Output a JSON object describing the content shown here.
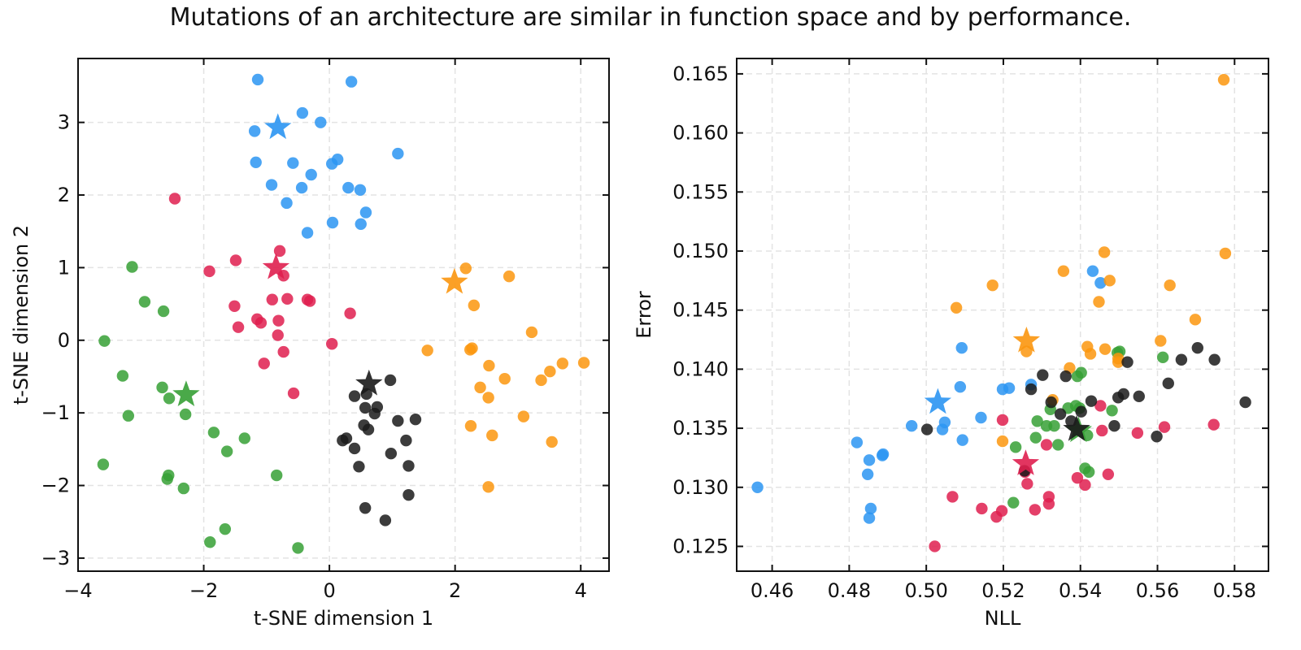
{
  "figure": {
    "title": "Mutations of an architecture are similar in function space and by performance."
  },
  "colors": {
    "blue": "#2b95f2",
    "red": "#df1f4f",
    "green": "#36a035",
    "orange": "#fb960e",
    "black": "#1a1a1a",
    "grid": "#e3e3e3",
    "axis": "#111111"
  },
  "chart_data": [
    {
      "type": "scatter",
      "xlabel": "t-SNE dimension 1",
      "ylabel": "t-SNE dimension 2",
      "xlim": [
        -4,
        4.45
      ],
      "ylim": [
        -3.18,
        3.88
      ],
      "xticks": [
        -4,
        -2,
        0,
        2,
        4
      ],
      "yticks": [
        -3,
        -2,
        -1,
        0,
        1,
        2,
        3
      ],
      "xtick_labels": [
        "−4",
        "−2",
        "0",
        "2",
        "4"
      ],
      "ytick_labels": [
        "−3",
        "−2",
        "−1",
        "0",
        "1",
        "2",
        "3"
      ],
      "grid": true,
      "series": [
        {
          "color": "blue",
          "star": [
            -0.82,
            2.93
          ],
          "points": [
            [
              -1.14,
              3.59
            ],
            [
              0.35,
              3.56
            ],
            [
              -0.43,
              3.13
            ],
            [
              -0.14,
              3.0
            ],
            [
              -1.19,
              2.88
            ],
            [
              1.09,
              2.57
            ],
            [
              0.13,
              2.49
            ],
            [
              -1.17,
              2.45
            ],
            [
              -0.58,
              2.44
            ],
            [
              0.04,
              2.43
            ],
            [
              -0.29,
              2.28
            ],
            [
              -0.92,
              2.14
            ],
            [
              -0.44,
              2.1
            ],
            [
              0.3,
              2.1
            ],
            [
              0.49,
              2.07
            ],
            [
              -0.68,
              1.89
            ],
            [
              0.58,
              1.76
            ],
            [
              0.05,
              1.62
            ],
            [
              0.5,
              1.6
            ],
            [
              -0.35,
              1.48
            ]
          ]
        },
        {
          "color": "red",
          "star": [
            -0.85,
            1.0
          ],
          "points": [
            [
              -2.46,
              1.95
            ],
            [
              -0.79,
              1.23
            ],
            [
              -1.49,
              1.1
            ],
            [
              -1.91,
              0.95
            ],
            [
              -0.73,
              0.89
            ],
            [
              -0.91,
              0.56
            ],
            [
              -0.67,
              0.57
            ],
            [
              -0.35,
              0.56
            ],
            [
              -0.31,
              0.54
            ],
            [
              -1.51,
              0.47
            ],
            [
              0.33,
              0.37
            ],
            [
              -1.15,
              0.29
            ],
            [
              -0.81,
              0.27
            ],
            [
              -1.09,
              0.24
            ],
            [
              -1.45,
              0.18
            ],
            [
              -0.82,
              0.07
            ],
            [
              0.04,
              -0.05
            ],
            [
              -0.73,
              -0.16
            ],
            [
              -1.04,
              -0.32
            ],
            [
              -0.57,
              -0.73
            ]
          ]
        },
        {
          "color": "green",
          "star": [
            -2.28,
            -0.75
          ],
          "points": [
            [
              -3.14,
              1.01
            ],
            [
              -2.94,
              0.53
            ],
            [
              -2.64,
              0.4
            ],
            [
              -3.58,
              -0.01
            ],
            [
              -3.29,
              -0.49
            ],
            [
              -2.66,
              -0.65
            ],
            [
              -2.55,
              -0.8
            ],
            [
              -2.29,
              -1.02
            ],
            [
              -3.2,
              -1.04
            ],
            [
              -1.84,
              -1.27
            ],
            [
              -1.35,
              -1.35
            ],
            [
              -1.63,
              -1.53
            ],
            [
              -3.6,
              -1.71
            ],
            [
              -2.56,
              -1.86
            ],
            [
              -0.84,
              -1.86
            ],
            [
              -2.58,
              -1.91
            ],
            [
              -2.32,
              -2.04
            ],
            [
              -1.66,
              -2.6
            ],
            [
              -1.9,
              -2.78
            ],
            [
              -0.5,
              -2.86
            ]
          ]
        },
        {
          "color": "orange",
          "star": [
            1.99,
            0.8
          ],
          "points": [
            [
              2.17,
              0.99
            ],
            [
              2.86,
              0.88
            ],
            [
              2.3,
              0.48
            ],
            [
              3.22,
              0.11
            ],
            [
              1.56,
              -0.14
            ],
            [
              2.24,
              -0.13
            ],
            [
              2.27,
              -0.11
            ],
            [
              4.05,
              -0.31
            ],
            [
              3.71,
              -0.32
            ],
            [
              2.54,
              -0.35
            ],
            [
              3.51,
              -0.43
            ],
            [
              2.79,
              -0.53
            ],
            [
              3.37,
              -0.55
            ],
            [
              2.4,
              -0.65
            ],
            [
              2.53,
              -0.79
            ],
            [
              3.09,
              -1.05
            ],
            [
              2.25,
              -1.18
            ],
            [
              2.59,
              -1.31
            ],
            [
              3.54,
              -1.4
            ],
            [
              2.53,
              -2.02
            ]
          ]
        },
        {
          "color": "black",
          "star": [
            0.63,
            -0.6
          ],
          "points": [
            [
              0.97,
              -0.55
            ],
            [
              0.4,
              -0.77
            ],
            [
              0.59,
              -0.74
            ],
            [
              0.76,
              -0.92
            ],
            [
              0.57,
              -0.93
            ],
            [
              0.72,
              -1.01
            ],
            [
              1.09,
              -1.11
            ],
            [
              1.37,
              -1.09
            ],
            [
              0.55,
              -1.17
            ],
            [
              0.21,
              -1.38
            ],
            [
              0.27,
              -1.35
            ],
            [
              0.62,
              -1.23
            ],
            [
              1.22,
              -1.38
            ],
            [
              0.4,
              -1.49
            ],
            [
              0.98,
              -1.56
            ],
            [
              0.47,
              -1.74
            ],
            [
              1.26,
              -1.73
            ],
            [
              1.26,
              -2.13
            ],
            [
              0.57,
              -2.31
            ],
            [
              0.89,
              -2.48
            ]
          ]
        }
      ]
    },
    {
      "type": "scatter",
      "xlabel": "NLL",
      "ylabel": "Error",
      "xlim": [
        0.4508,
        0.5888
      ],
      "ylim": [
        0.1229,
        0.1663
      ],
      "xticks": [
        0.46,
        0.48,
        0.5,
        0.52,
        0.54,
        0.56,
        0.58
      ],
      "yticks": [
        0.125,
        0.13,
        0.135,
        0.14,
        0.145,
        0.15,
        0.155,
        0.16,
        0.165
      ],
      "xtick_labels": [
        "0.46",
        "0.48",
        "0.50",
        "0.52",
        "0.54",
        "0.56",
        "0.58"
      ],
      "ytick_labels": [
        "0.125",
        "0.130",
        "0.135",
        "0.140",
        "0.145",
        "0.150",
        "0.155",
        "0.160",
        "0.165"
      ],
      "grid": true,
      "series": [
        {
          "color": "blue",
          "star": [
            0.503,
            0.1372
          ],
          "points": [
            [
              0.4562,
              0.13
            ],
            [
              0.482,
              0.1338
            ],
            [
              0.4848,
              0.1311
            ],
            [
              0.4852,
              0.1323
            ],
            [
              0.4856,
              0.1282
            ],
            [
              0.4852,
              0.1274
            ],
            [
              0.4886,
              0.1327
            ],
            [
              0.4888,
              0.1328
            ],
            [
              0.4962,
              0.1352
            ],
            [
              0.5042,
              0.1349
            ],
            [
              0.5048,
              0.1355
            ],
            [
              0.5088,
              0.1385
            ],
            [
              0.5092,
              0.1418
            ],
            [
              0.5094,
              0.134
            ],
            [
              0.5142,
              0.1359
            ],
            [
              0.5198,
              0.1383
            ],
            [
              0.5215,
              0.1384
            ],
            [
              0.5272,
              0.1387
            ],
            [
              0.5432,
              0.1483
            ],
            [
              0.5452,
              0.1473
            ]
          ]
        },
        {
          "color": "red",
          "star": [
            0.5258,
            0.132
          ],
          "points": [
            [
              0.5022,
              0.125
            ],
            [
              0.5068,
              0.1292
            ],
            [
              0.5144,
              0.1282
            ],
            [
              0.5182,
              0.1275
            ],
            [
              0.5196,
              0.128
            ],
            [
              0.5198,
              0.1357
            ],
            [
              0.5256,
              0.1313
            ],
            [
              0.5262,
              0.1303
            ],
            [
              0.5282,
              0.1281
            ],
            [
              0.5312,
              0.1336
            ],
            [
              0.5318,
              0.1286
            ],
            [
              0.5318,
              0.1292
            ],
            [
              0.5392,
              0.1308
            ],
            [
              0.5412,
              0.1302
            ],
            [
              0.5452,
              0.1369
            ],
            [
              0.5456,
              0.1348
            ],
            [
              0.5472,
              0.1311
            ],
            [
              0.5548,
              0.1346
            ],
            [
              0.5618,
              0.1351
            ],
            [
              0.5746,
              0.1353
            ]
          ]
        },
        {
          "color": "green",
          "star": [
            0.5395,
            0.1348
          ],
          "points": [
            [
              0.5232,
              0.1334
            ],
            [
              0.5226,
              0.1287
            ],
            [
              0.5284,
              0.1342
            ],
            [
              0.5288,
              0.1356
            ],
            [
              0.5312,
              0.1352
            ],
            [
              0.5322,
              0.1366
            ],
            [
              0.5332,
              0.1352
            ],
            [
              0.5342,
              0.1336
            ],
            [
              0.5368,
              0.1367
            ],
            [
              0.5388,
              0.1369
            ],
            [
              0.5398,
              0.1367
            ],
            [
              0.5412,
              0.1316
            ],
            [
              0.5418,
              0.1344
            ],
            [
              0.5422,
              0.1313
            ],
            [
              0.5402,
              0.1397
            ],
            [
              0.5392,
              0.1394
            ],
            [
              0.5482,
              0.1365
            ],
            [
              0.5496,
              0.1414
            ],
            [
              0.5502,
              0.1415
            ],
            [
              0.5614,
              0.141
            ]
          ]
        },
        {
          "color": "orange",
          "star": [
            0.526,
            0.1424
          ],
          "points": [
            [
              0.5078,
              0.1452
            ],
            [
              0.5172,
              0.1471
            ],
            [
              0.5198,
              0.1339
            ],
            [
              0.526,
              0.1415
            ],
            [
              0.5328,
              0.1374
            ],
            [
              0.5356,
              0.1483
            ],
            [
              0.5372,
              0.1401
            ],
            [
              0.5418,
              0.1419
            ],
            [
              0.5426,
              0.1413
            ],
            [
              0.5448,
              0.1457
            ],
            [
              0.5462,
              0.1499
            ],
            [
              0.5464,
              0.1417
            ],
            [
              0.5476,
              0.1475
            ],
            [
              0.5498,
              0.1406
            ],
            [
              0.5608,
              0.1424
            ],
            [
              0.5632,
              0.1471
            ],
            [
              0.5698,
              0.1442
            ],
            [
              0.5772,
              0.1645
            ],
            [
              0.5776,
              0.1498
            ],
            [
              0.5498,
              0.1409
            ]
          ]
        },
        {
          "color": "black",
          "star": [
            0.539,
            0.1349
          ],
          "points": [
            [
              0.5002,
              0.1349
            ],
            [
              0.5255,
              0.1314
            ],
            [
              0.5272,
              0.1383
            ],
            [
              0.5302,
              0.1395
            ],
            [
              0.5324,
              0.1372
            ],
            [
              0.5348,
              0.1362
            ],
            [
              0.5362,
              0.1394
            ],
            [
              0.5376,
              0.1356
            ],
            [
              0.5402,
              0.1364
            ],
            [
              0.5428,
              0.1373
            ],
            [
              0.5488,
              0.1352
            ],
            [
              0.5498,
              0.1376
            ],
            [
              0.5512,
              0.1379
            ],
            [
              0.5522,
              0.1406
            ],
            [
              0.5552,
              0.1377
            ],
            [
              0.5598,
              0.1343
            ],
            [
              0.5628,
              0.1388
            ],
            [
              0.5662,
              0.1408
            ],
            [
              0.5704,
              0.1418
            ],
            [
              0.5748,
              0.1408
            ],
            [
              0.5828,
              0.1372
            ]
          ]
        }
      ]
    }
  ]
}
